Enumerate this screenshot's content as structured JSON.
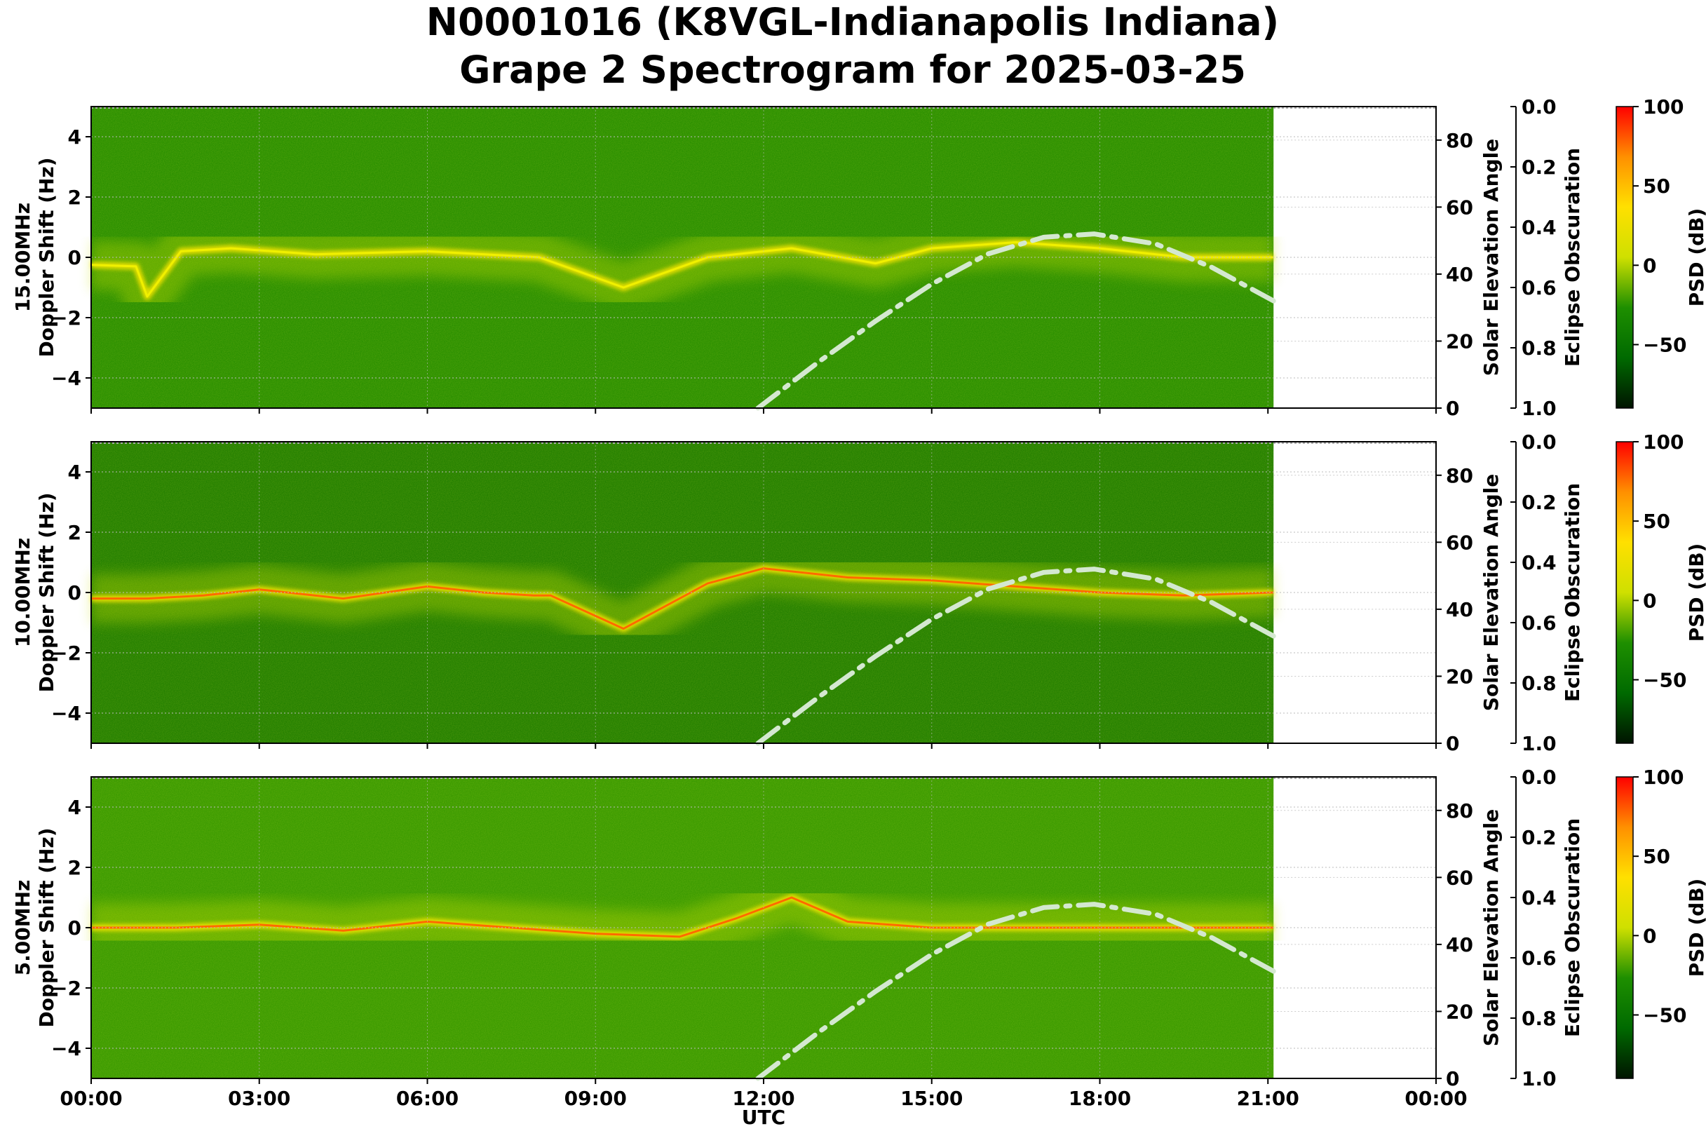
{
  "chart_data": {
    "type": "heatmap",
    "title_lines": [
      "N0001016 (K8VGL-Indianapolis Indiana)",
      "Grape 2 Spectrogram for 2025-03-25"
    ],
    "xlabel": "UTC",
    "x_ticks": [
      "00:00",
      "03:00",
      "06:00",
      "09:00",
      "12:00",
      "15:00",
      "18:00",
      "21:00",
      "00:00"
    ],
    "x_range_hours": [
      0,
      24
    ],
    "data_end_hour": 21.1,
    "left_axis": {
      "label": "Doppler Shift (Hz)",
      "range": [
        -5,
        5
      ],
      "ticks": [
        "4",
        "2",
        "0",
        "−2",
        "−4"
      ]
    },
    "right_axis": {
      "label": "Solar Elevation Angle",
      "range": [
        0,
        90
      ],
      "ticks": [
        "80",
        "60",
        "40",
        "20",
        "0"
      ]
    },
    "eclipse_axis": {
      "label": "Eclipse Obscuration",
      "range": [
        0.0,
        1.0
      ],
      "inverted": true,
      "ticks": [
        "0.0",
        "0.2",
        "0.4",
        "0.6",
        "0.8",
        "1.0"
      ]
    },
    "colorbar": {
      "label": "PSD (dB)",
      "range": [
        -90,
        100
      ],
      "ticks": [
        "100",
        "50",
        "0",
        "−50"
      ],
      "colors": [
        "#001400",
        "#006a00",
        "#1e8f00",
        "#cfe000",
        "#ffe000",
        "#ff9000",
        "#ff0000"
      ]
    },
    "grid": true,
    "solar_elevation_curve": {
      "style": "dash-dot",
      "color": "#d4e8d0",
      "hours": [
        11.9,
        13,
        14,
        15,
        16,
        17,
        17.9,
        19,
        20,
        21.1
      ],
      "degrees": [
        0,
        14,
        26,
        37,
        46,
        51,
        52,
        49,
        42,
        32
      ]
    },
    "panels": [
      {
        "label": "15.00MHz",
        "base_color": "#2a8f00",
        "strong_doppler": [
          [
            0,
            -0.25
          ],
          [
            0.8,
            -0.3
          ],
          [
            1.0,
            -1.3
          ],
          [
            1.6,
            0.2
          ],
          [
            2.5,
            0.3
          ],
          [
            4,
            0.1
          ],
          [
            6,
            0.2
          ],
          [
            8,
            0.0
          ],
          [
            9.5,
            -1.0
          ],
          [
            11,
            0.0
          ],
          [
            12.5,
            0.3
          ],
          [
            14,
            -0.2
          ],
          [
            15,
            0.3
          ],
          [
            16.5,
            0.5
          ],
          [
            18,
            0.3
          ],
          [
            19.5,
            0.0
          ],
          [
            21.1,
            0.0
          ]
        ]
      },
      {
        "label": "10.00MHz",
        "base_color": "#237f00",
        "strong_doppler": [
          [
            0,
            -0.2
          ],
          [
            1,
            -0.2
          ],
          [
            2,
            -0.1
          ],
          [
            3,
            0.1
          ],
          [
            4.5,
            -0.2
          ],
          [
            6,
            0.2
          ],
          [
            7,
            0.0
          ],
          [
            7.9,
            -0.1
          ],
          [
            8.2,
            -0.1
          ],
          [
            9.5,
            -1.2
          ],
          [
            11,
            0.3
          ],
          [
            12,
            0.8
          ],
          [
            13.5,
            0.5
          ],
          [
            15,
            0.4
          ],
          [
            16.5,
            0.2
          ],
          [
            18,
            0.0
          ],
          [
            19.5,
            -0.1
          ],
          [
            21.1,
            0.0
          ]
        ]
      },
      {
        "label": "5.00MHz",
        "base_color": "#3a9a00",
        "strong_doppler": [
          [
            0,
            0.0
          ],
          [
            1.5,
            0.0
          ],
          [
            3,
            0.1
          ],
          [
            4.5,
            -0.1
          ],
          [
            6,
            0.2
          ],
          [
            7.5,
            0.0
          ],
          [
            9,
            -0.2
          ],
          [
            10.5,
            -0.3
          ],
          [
            11.5,
            0.3
          ],
          [
            12.5,
            1.0
          ],
          [
            13.5,
            0.2
          ],
          [
            15,
            0.0
          ],
          [
            18,
            0.0
          ],
          [
            21.1,
            0.0
          ]
        ]
      }
    ]
  }
}
